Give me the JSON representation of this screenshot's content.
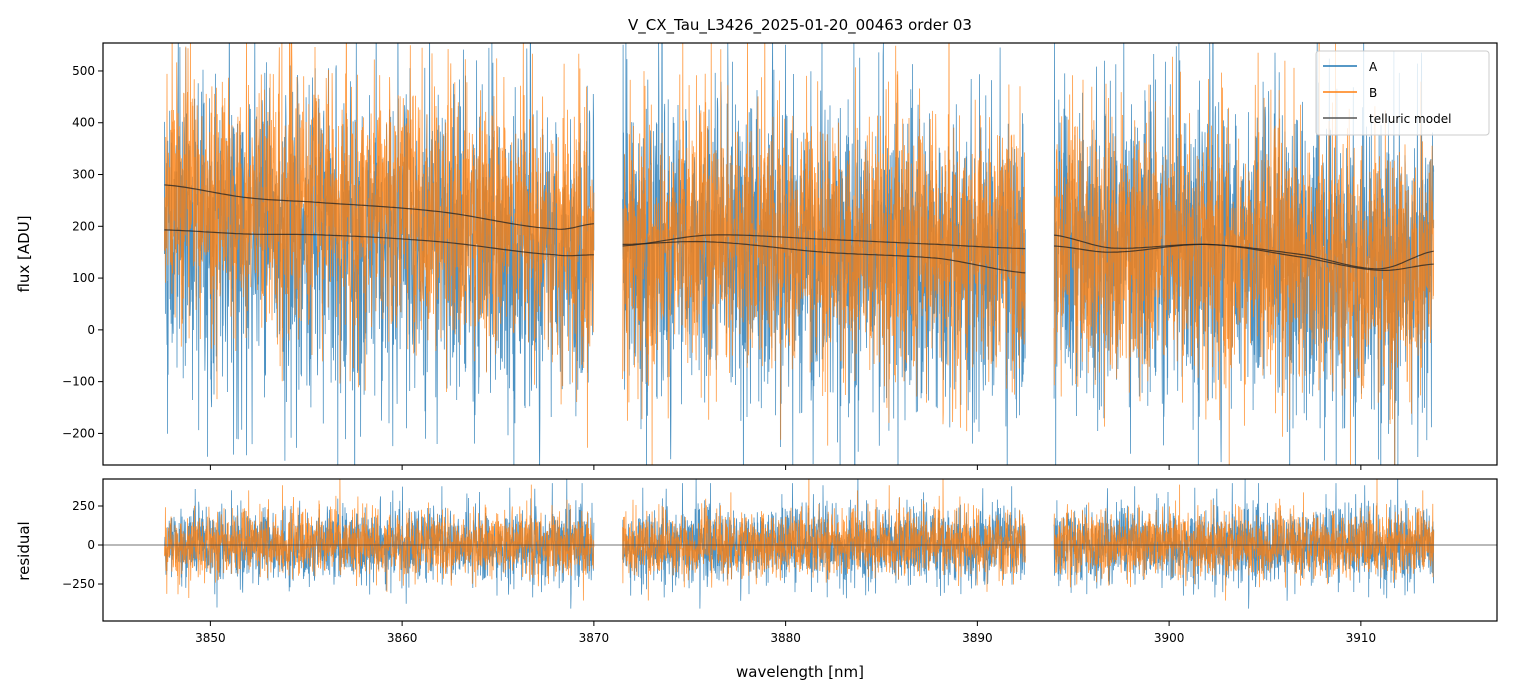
{
  "chart_data": [
    {
      "type": "line",
      "title": "V_CX_Tau_L3426_2025-01-20_00463  order 03",
      "xlabel": "",
      "ylabel": "flux [ADU]",
      "xlim": [
        3844.4,
        3917.1
      ],
      "ylim": [
        -261,
        554
      ],
      "yticks": [
        -200,
        -100,
        0,
        100,
        200,
        300,
        400,
        500
      ],
      "ytick_labels": [
        "−200",
        "−100",
        "0",
        "100",
        "200",
        "300",
        "400",
        "500"
      ],
      "xticks": [
        3850,
        3860,
        3870,
        3880,
        3890,
        3900,
        3910
      ],
      "grid": false,
      "legend": {
        "placement": "top-right",
        "entries": [
          "A",
          "B",
          "telluric model"
        ]
      },
      "colors": {
        "A": "#1f77b4",
        "B": "#ff7f0e",
        "telluric model": "#333333"
      },
      "segments": [
        [
          3847.6,
          3870.0
        ],
        [
          3871.5,
          3892.5
        ],
        [
          3894.0,
          3913.8
        ]
      ],
      "telluric_model": [
        {
          "x": [
            3847.6,
            3852,
            3856,
            3862,
            3868,
            3870
          ],
          "y": [
            280,
            255,
            245,
            228,
            195,
            205
          ]
        },
        {
          "x": [
            3847.6,
            3852,
            3856,
            3862,
            3868,
            3870
          ],
          "y": [
            193,
            185,
            183,
            170,
            145,
            145
          ]
        },
        {
          "x": [
            3871.5,
            3876,
            3882,
            3888,
            3892.5
          ],
          "y": [
            162,
            183,
            175,
            165,
            157
          ]
        },
        {
          "x": [
            3871.5,
            3876,
            3882,
            3888,
            3892.5
          ],
          "y": [
            165,
            170,
            150,
            138,
            110
          ]
        },
        {
          "x": [
            3894,
            3897,
            3902,
            3907,
            3911,
            3913.8
          ],
          "y": [
            183,
            158,
            165,
            145,
            118,
            152
          ]
        },
        {
          "x": [
            3894,
            3897,
            3902,
            3907,
            3911,
            3913.8
          ],
          "y": [
            162,
            150,
            165,
            140,
            115,
            127
          ]
        }
      ]
    },
    {
      "type": "line",
      "title": "",
      "xlabel": "wavelength [nm]",
      "ylabel": "residual",
      "xlim": [
        3844.4,
        3917.1
      ],
      "ylim": [
        -487,
        423
      ],
      "yticks": [
        -250,
        0,
        250
      ],
      "ytick_labels": [
        "−250",
        "0",
        "250"
      ],
      "xticks": [
        3850,
        3860,
        3870,
        3880,
        3890,
        3900,
        3910
      ],
      "xtick_labels": [
        "3850",
        "3860",
        "3870",
        "3880",
        "3890",
        "3900",
        "3910"
      ],
      "zero_line": 0,
      "grid": false
    }
  ]
}
